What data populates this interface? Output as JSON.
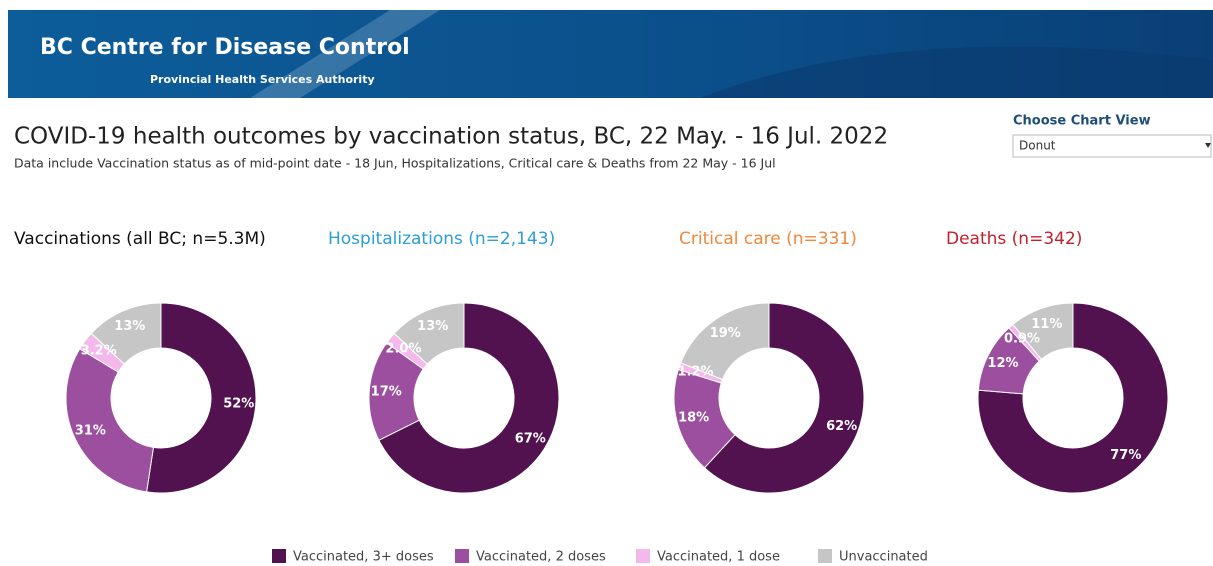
{
  "header": {
    "org": "BC Centre for Disease Control",
    "sub": "Provincial Health Services Authority"
  },
  "title": "COVID-19 health outcomes by vaccination status, BC,  22 May. - 16 Jul. 2022",
  "subtitle": "Data include Vaccination status as of mid-point date - 18 Jun, Hospitalizations, Critical care & Deaths from 22 May - 16 Jul",
  "control": {
    "label": "Choose Chart View",
    "value": "Donut"
  },
  "legend": [
    {
      "name": "Vaccinated, 3+ doses",
      "color": "#52114f"
    },
    {
      "name": "Vaccinated, 2 doses",
      "color": "#9b4f9e"
    },
    {
      "name": "Vaccinated, 1 dose",
      "color": "#f4b9ea"
    },
    {
      "name": "Unvaccinated",
      "color": "#c6c6c6"
    }
  ],
  "chart_data": [
    {
      "type": "pie",
      "title": "Vaccinations (all BC; n=5.3M)",
      "title_color": "#111111",
      "values": [
        52,
        31,
        3.2,
        13
      ],
      "value_labels": [
        "52%",
        "31%",
        "3.2%",
        "13%"
      ]
    },
    {
      "type": "pie",
      "title": "Hospitalizations (n=2,143)",
      "title_color": "#2a9fd8",
      "values": [
        67,
        17,
        2.0,
        13
      ],
      "value_labels": [
        "67%",
        "17%",
        "2.0%",
        "13%"
      ]
    },
    {
      "type": "pie",
      "title": "Critical care (n=331)",
      "title_color": "#f0883a",
      "values": [
        62,
        18,
        1.2,
        19
      ],
      "value_labels": [
        "62%",
        "18%",
        "1.2%",
        "19%"
      ]
    },
    {
      "type": "pie",
      "title": "Deaths (n=342)",
      "title_color": "#c0212c",
      "values": [
        77,
        12,
        0.9,
        11
      ],
      "value_labels": [
        "77%",
        "12%",
        "0.9%",
        "11%"
      ]
    }
  ]
}
